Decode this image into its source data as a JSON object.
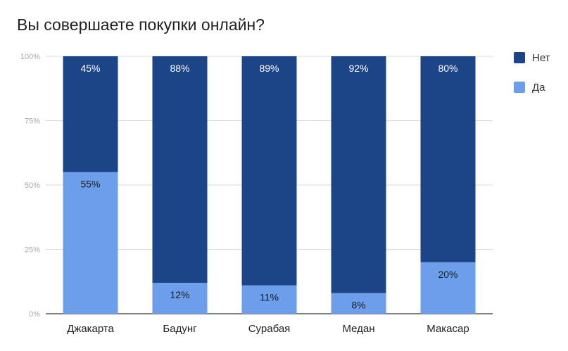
{
  "chart_data": {
    "type": "bar",
    "stacked": true,
    "title": "Вы совершаете покупки онлайн?",
    "categories": [
      "Джакарта",
      "Бадунг",
      "Сурабая",
      "Медан",
      "Макасар"
    ],
    "series": [
      {
        "name": "Да",
        "values": [
          55,
          12,
          11,
          8,
          20
        ],
        "labels": [
          "55%",
          "12%",
          "11%",
          "8%",
          "20%"
        ],
        "color": "#6d9eeb"
      },
      {
        "name": "Нет",
        "values": [
          45,
          88,
          89,
          92,
          80
        ],
        "labels": [
          "45%",
          "88%",
          "89%",
          "92%",
          "80%"
        ],
        "color": "#1c4587"
      }
    ],
    "y_ticks": [
      0,
      25,
      50,
      75,
      100
    ],
    "y_tick_labels": [
      "0%",
      "25%",
      "50%",
      "75%",
      "100%"
    ],
    "ylim": [
      0,
      100
    ],
    "grid": true,
    "legend_position": "right"
  }
}
